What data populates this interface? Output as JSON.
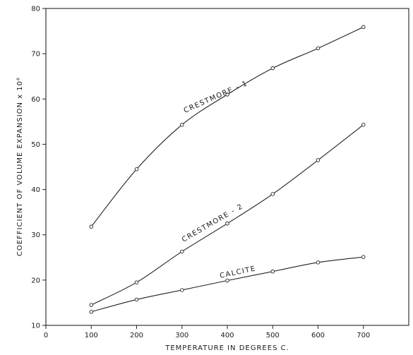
{
  "chart_data": {
    "type": "line",
    "title": "",
    "xlabel": "TEMPERATURE IN DEGREES C.",
    "ylabel": "COEFFICIENT OF VOLUME EXPANSION x 10⁶",
    "xlim": [
      0,
      800
    ],
    "ylim": [
      10,
      80
    ],
    "x_ticks": [
      0,
      100,
      200,
      300,
      400,
      500,
      600,
      700
    ],
    "y_ticks": [
      10,
      20,
      30,
      40,
      50,
      60,
      70,
      80
    ],
    "grid": false,
    "series": [
      {
        "name": "CRESTMORE - 1",
        "x": [
          100,
          200,
          300,
          400,
          500,
          600,
          700
        ],
        "y": [
          31.8,
          44.5,
          54.3,
          61.0,
          66.8,
          71.2,
          75.9
        ]
      },
      {
        "name": "CRESTMORE - 2",
        "x": [
          100,
          200,
          300,
          400,
          500,
          600,
          700
        ],
        "y": [
          14.5,
          19.5,
          26.3,
          32.5,
          39.0,
          46.5,
          54.3
        ]
      },
      {
        "name": "CALCITE",
        "x": [
          100,
          200,
          300,
          400,
          500,
          600,
          700
        ],
        "y": [
          13.0,
          15.7,
          17.8,
          19.9,
          21.9,
          23.9,
          25.1
        ]
      }
    ]
  }
}
